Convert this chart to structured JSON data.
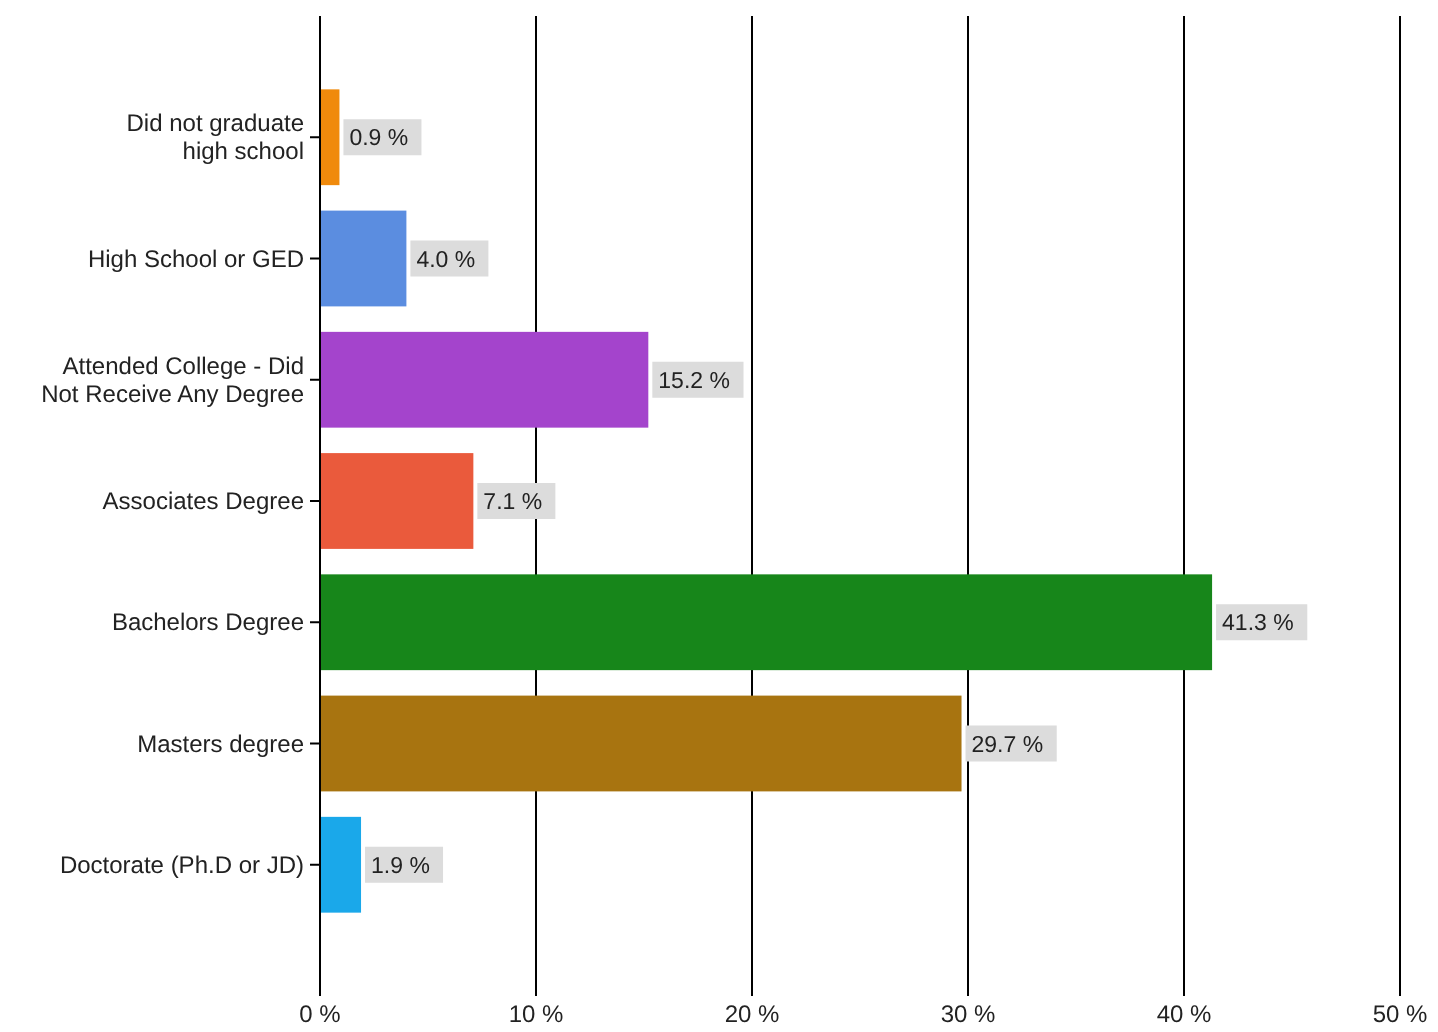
{
  "chart_data": {
    "type": "bar",
    "orientation": "horizontal",
    "categories": [
      "Did not graduate high school",
      "High School or GED",
      "Attended College - Did Not Receive Any Degree",
      "Associates Degree",
      "Bachelors Degree",
      "Masters degree",
      "Doctorate (Ph.D or JD)"
    ],
    "values": [
      0.9,
      4.0,
      15.2,
      7.1,
      41.3,
      29.7,
      1.9
    ],
    "colors": [
      "#f08a0c",
      "#5b8de0",
      "#a444cc",
      "#ea5a3c",
      "#17861a",
      "#a87410",
      "#1aa8ea"
    ],
    "value_labels": [
      "0.9 %",
      "4.0 %",
      "15.2 %",
      "7.1 %",
      "41.3 %",
      "29.7 %",
      "1.9 %"
    ],
    "xlim": [
      0,
      50
    ],
    "xticks": [
      {
        "value": 0,
        "label": "0 %"
      },
      {
        "value": 10,
        "label": "10 %"
      },
      {
        "value": 20,
        "label": "20 %"
      },
      {
        "value": 30,
        "label": "30 %"
      },
      {
        "value": 40,
        "label": "40 %"
      },
      {
        "value": 50,
        "label": "50 %"
      }
    ],
    "grid": "x"
  }
}
